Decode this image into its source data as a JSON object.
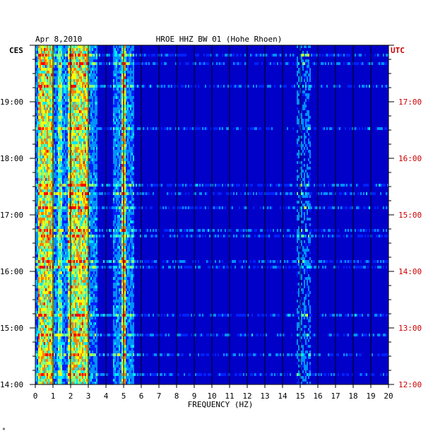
{
  "chart_data": {
    "type": "heatmap",
    "date_label": "Apr 8,2010",
    "title": "HROE HHZ BW 01 (Hohe Rhoen)",
    "xlabel": "FREQUENCY (HZ)",
    "left_axis_label": "CES",
    "right_axis_label": "UTC",
    "xlim": [
      0,
      20
    ],
    "x_ticks": [
      0,
      1,
      2,
      3,
      4,
      5,
      6,
      7,
      8,
      9,
      10,
      11,
      12,
      13,
      14,
      15,
      16,
      17,
      18,
      19,
      20
    ],
    "x_tick_labels": [
      "0",
      "1",
      "2",
      "3",
      "4",
      "5",
      "6",
      "7",
      "8",
      "9",
      "10",
      "11",
      "12",
      "13",
      "14",
      "15",
      "16",
      "17",
      "18",
      "19",
      "20"
    ],
    "y_range_local_hours": [
      14.0,
      20.0
    ],
    "local_time_ticks": [
      "19:00",
      "18:00",
      "17:00",
      "16:00",
      "15:00",
      "14:00"
    ],
    "utc_time_ticks": [
      "17:00",
      "16:00",
      "15:00",
      "14:00",
      "13:00",
      "12:00"
    ],
    "grid": true,
    "colormap": [
      "#00007a",
      "#0000c8",
      "#0020ff",
      "#0090ff",
      "#00e8ff",
      "#80ff80",
      "#ffff00",
      "#ff8000",
      "#ff0000"
    ],
    "background_color": "#0000c8",
    "left_label_color": "#000000",
    "right_label_color": "#cc0000",
    "dominant_bands_hz": [
      [
        0.2,
        1.0
      ],
      [
        1.8,
        3.0
      ],
      [
        4.9,
        5.1
      ]
    ],
    "intermittent_lines_hz": [
      15.2
    ]
  },
  "footnote": "*"
}
